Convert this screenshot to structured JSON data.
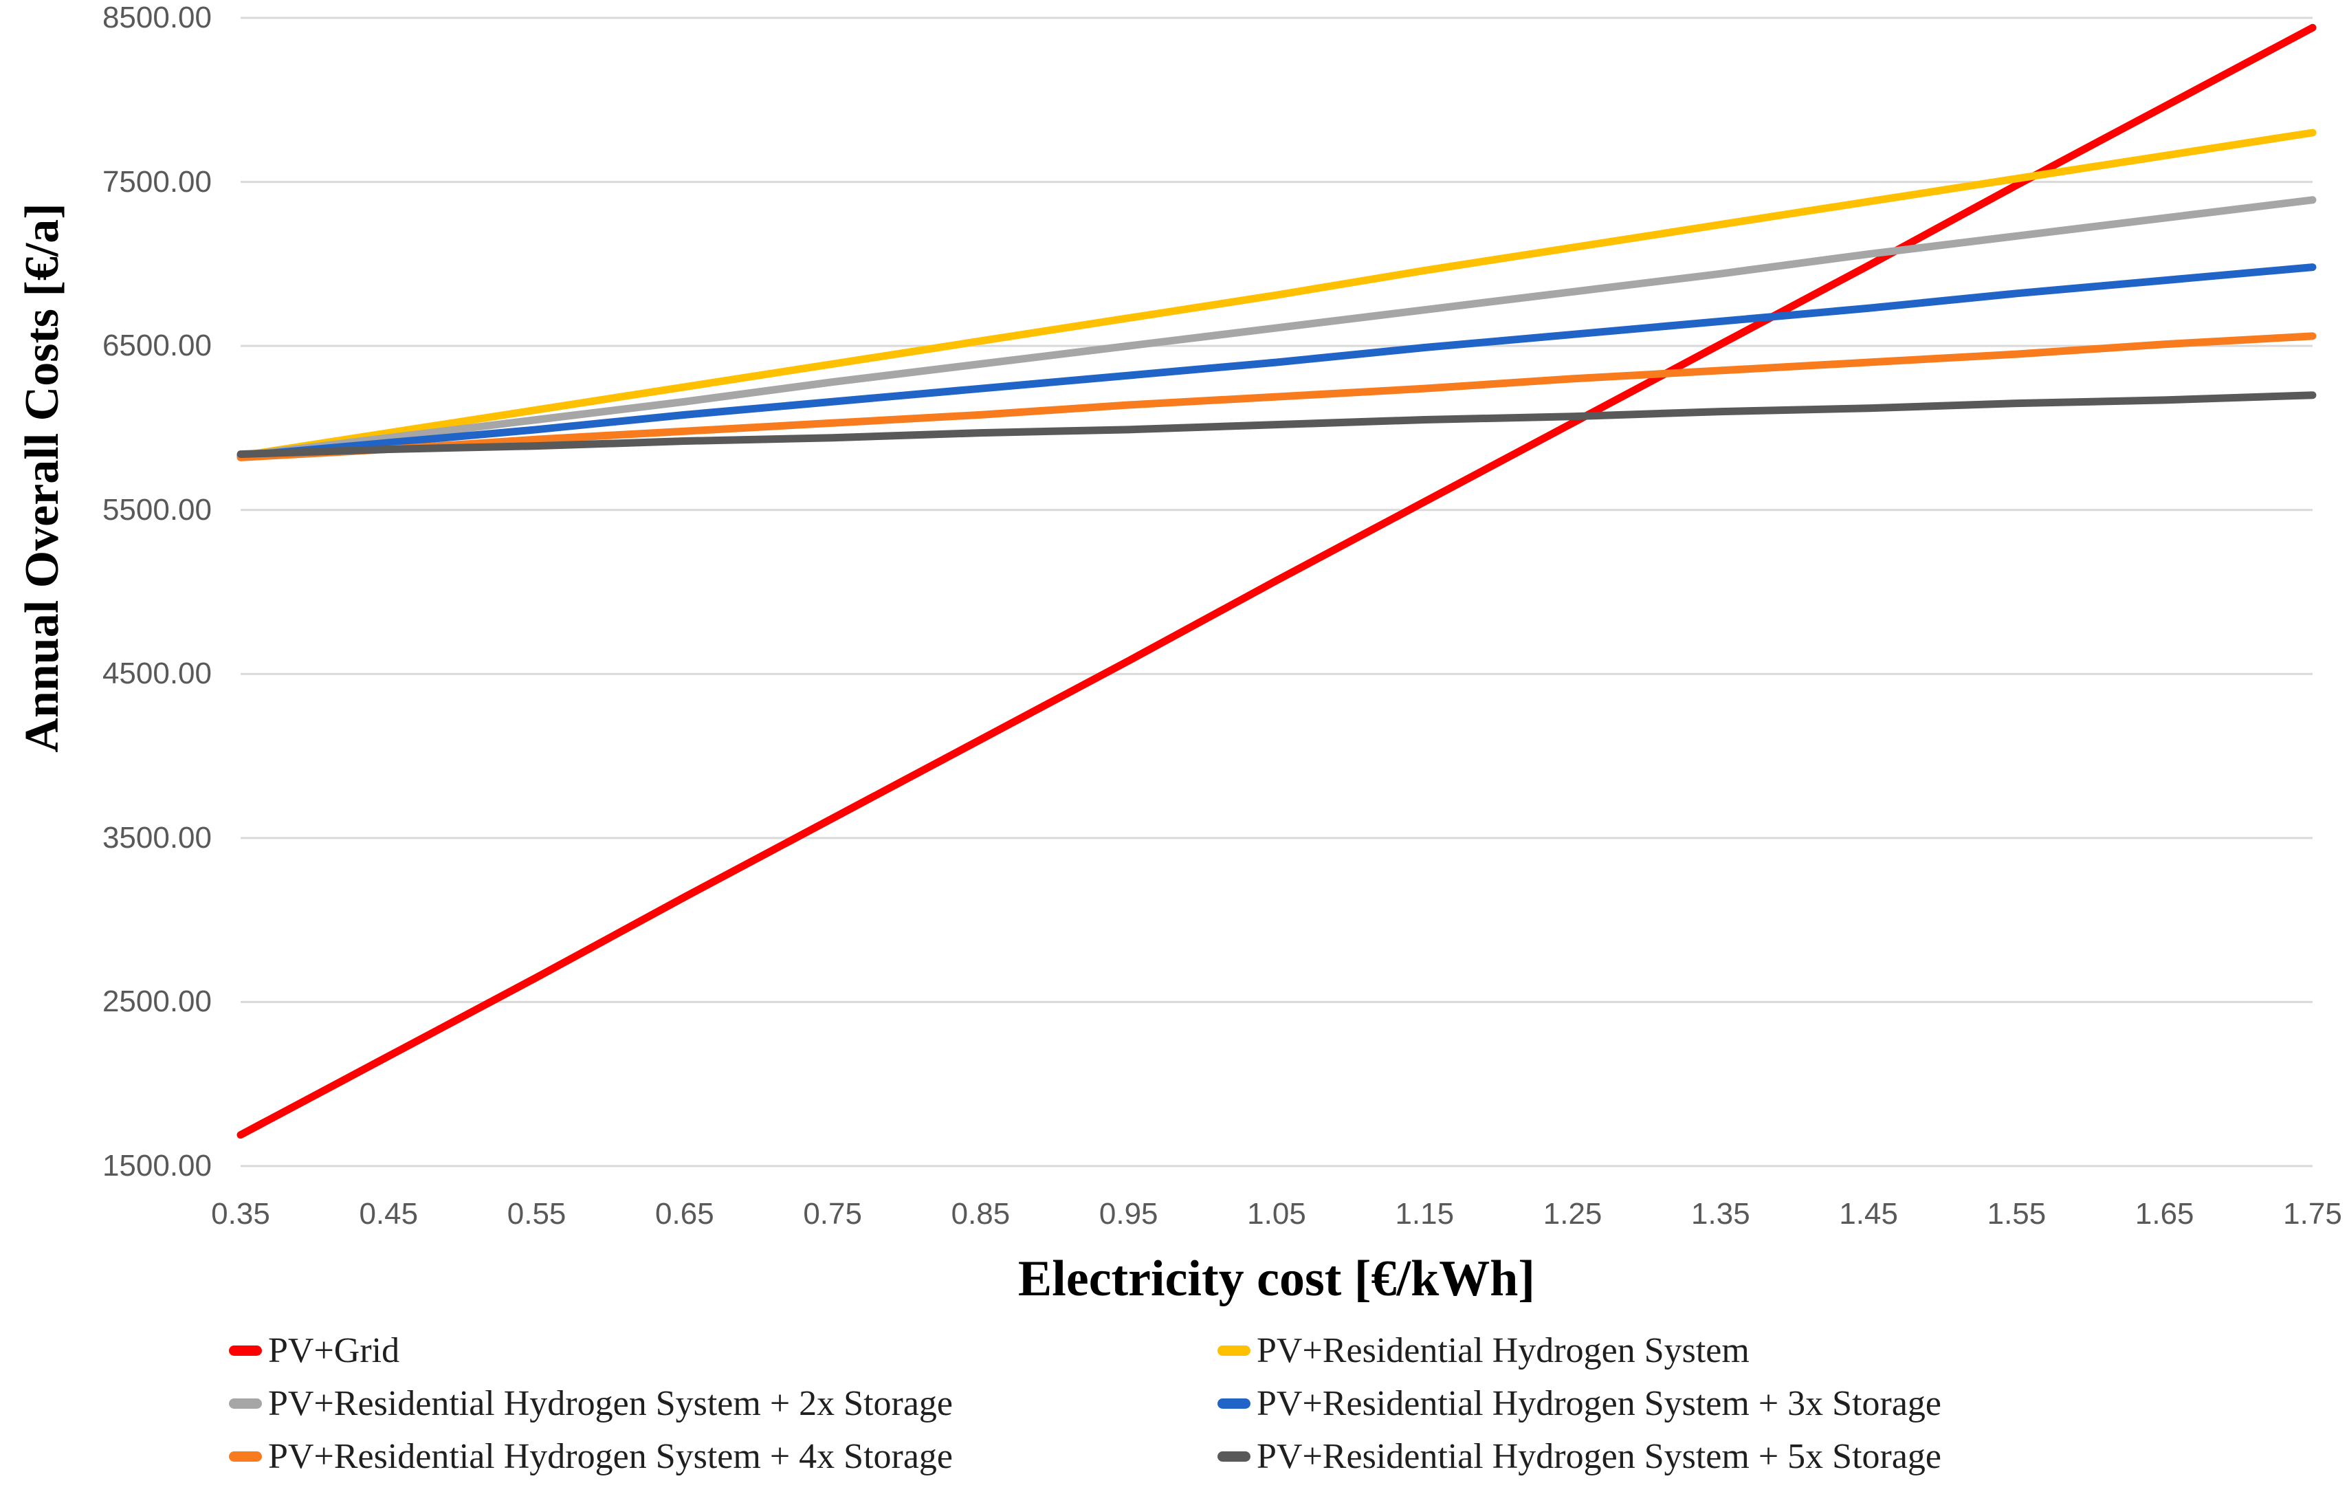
{
  "chart_data": {
    "type": "line",
    "title": "",
    "xlabel": "Electricity cost [€/kWh]",
    "ylabel": "Annual Overall Costs [€/a]",
    "xlim": [
      0.35,
      1.75
    ],
    "ylim": [
      1500,
      8500
    ],
    "grid": "horizontal-only",
    "gridline_color": "#D9D9D9",
    "tick_label_color": "#595959",
    "legend_position": "bottom-two-columns",
    "x": [
      0.35,
      0.45,
      0.55,
      0.65,
      0.75,
      0.85,
      0.95,
      1.05,
      1.15,
      1.25,
      1.35,
      1.45,
      1.55,
      1.65,
      1.75
    ],
    "xtick_labels": [
      "0.35",
      "0.45",
      "0.55",
      "0.65",
      "0.75",
      "0.85",
      "0.95",
      "1.05",
      "1.15",
      "1.25",
      "1.35",
      "1.45",
      "1.55",
      "1.65",
      "1.75"
    ],
    "ytick_values": [
      1500,
      2500,
      3500,
      4500,
      5500,
      6500,
      7500,
      8500
    ],
    "ytick_labels": [
      "1500.00",
      "2500.00",
      "3500.00",
      "4500.00",
      "5500.00",
      "6500.00",
      "7500.00",
      "8500.00"
    ],
    "series": [
      {
        "name": "PV+Grid",
        "slug": "pv-grid",
        "color": "#FE0000",
        "values": [
          1690,
          2170,
          2650,
          3140,
          3620,
          4100,
          4580,
          5070,
          5550,
          6030,
          6510,
          6990,
          7480,
          7960,
          8440
        ]
      },
      {
        "name": "PV+Residential Hydrogen System",
        "slug": "pv-residential-hydrogen-system",
        "color": "#FFC000",
        "values": [
          5830,
          5970,
          6110,
          6250,
          6390,
          6530,
          6670,
          6810,
          6960,
          7100,
          7240,
          7380,
          7520,
          7660,
          7800
        ]
      },
      {
        "name": "PV+Residential Hydrogen System + 2x Storage",
        "slug": "pv-residential-hydrogen-system-2x-storage",
        "color": "#A6A6A6",
        "values": [
          5830,
          5940,
          6050,
          6160,
          6280,
          6390,
          6500,
          6610,
          6720,
          6830,
          6940,
          7060,
          7170,
          7280,
          7390
        ]
      },
      {
        "name": "PV+Residential Hydrogen System + 3x Storage",
        "slug": "pv-residential-hydrogen-system-3x-storage",
        "color": "#2164C8",
        "values": [
          5830,
          5910,
          5990,
          6080,
          6160,
          6240,
          6320,
          6400,
          6490,
          6570,
          6650,
          6730,
          6820,
          6900,
          6980
        ]
      },
      {
        "name": "PV+Residential Hydrogen System + 4x Storage",
        "slug": "pv-residential-hydrogen-system-4x-storage",
        "color": "#F87B1D",
        "values": [
          5820,
          5870,
          5930,
          5980,
          6030,
          6080,
          6140,
          6190,
          6240,
          6300,
          6350,
          6400,
          6450,
          6510,
          6560
        ]
      },
      {
        "name": "PV+Residential Hydrogen System + 5x Storage",
        "slug": "pv-residential-hydrogen-system-5x-storage",
        "color": "#595959",
        "values": [
          5840,
          5870,
          5890,
          5920,
          5940,
          5970,
          5990,
          6020,
          6050,
          6070,
          6100,
          6120,
          6150,
          6170,
          6200
        ]
      }
    ]
  }
}
